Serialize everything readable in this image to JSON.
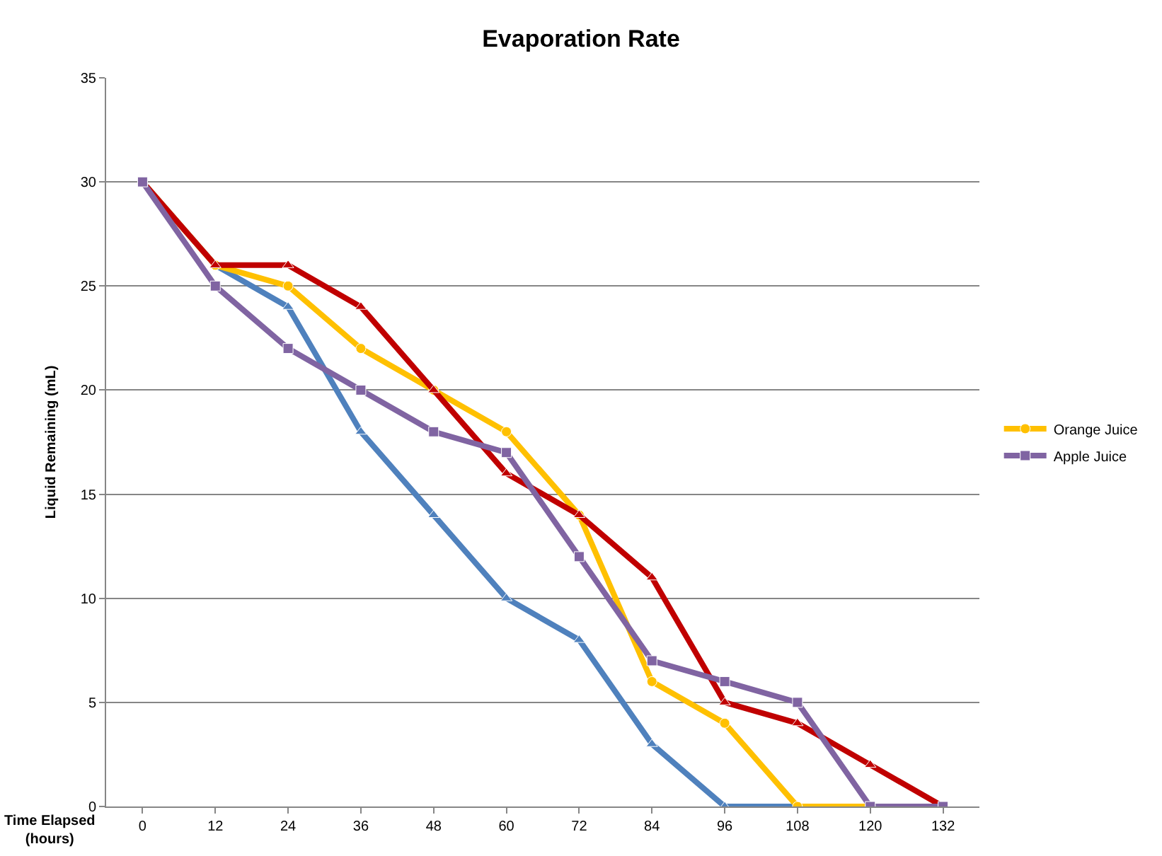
{
  "chart_data": {
    "type": "line",
    "title": "Evaporation Rate",
    "xlabel": "Time Elapsed (hours)",
    "ylabel": "Liquid Remaining (mL)",
    "categories": [
      "0",
      "12",
      "24",
      "36",
      "48",
      "60",
      "72",
      "84",
      "96",
      "108",
      "120",
      "132"
    ],
    "ylim": [
      0,
      35
    ],
    "yticks": [
      0,
      5,
      10,
      15,
      20,
      25,
      30,
      35
    ],
    "grid": "y",
    "legend": "right",
    "series": [
      {
        "color": "#4f81bd",
        "marker": "triangle",
        "values": [
          30,
          26,
          24,
          18,
          14,
          10,
          8,
          3,
          0,
          0,
          0,
          0
        ]
      },
      {
        "name": "Orange Juice",
        "color": "#ffc000",
        "marker": "circle",
        "values": [
          30,
          26,
          25,
          22,
          20,
          18,
          14,
          6,
          4,
          0,
          0,
          0
        ]
      },
      {
        "color": "#c00000",
        "marker": "triangle",
        "values": [
          30,
          26,
          26,
          24,
          20,
          16,
          14,
          11,
          5,
          4,
          2,
          0
        ]
      },
      {
        "name": "Apple Juice",
        "color": "#8064a2",
        "marker": "square",
        "values": [
          30,
          25,
          22,
          20,
          18,
          17,
          12,
          7,
          6,
          5,
          0,
          0
        ]
      }
    ]
  }
}
